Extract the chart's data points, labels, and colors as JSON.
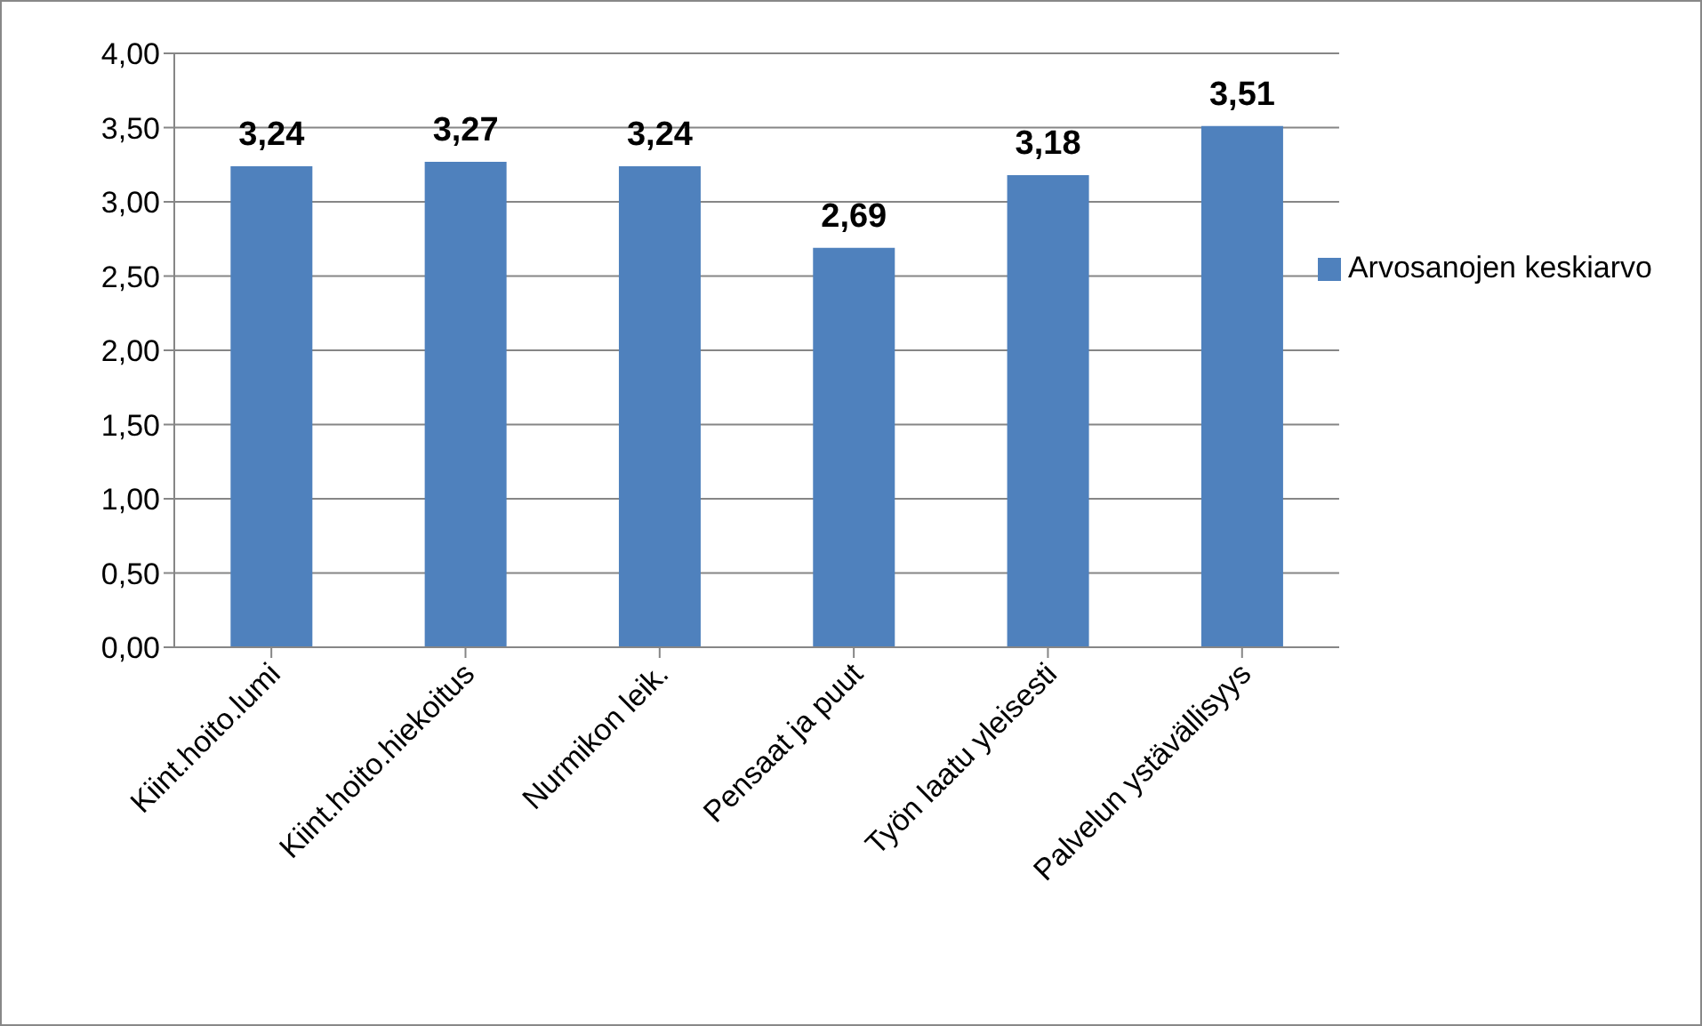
{
  "chart_data": {
    "type": "bar",
    "categories": [
      "Kiint.hoito.lumi",
      "Kiint.hoito.hiekoitus",
      "Nurmikon leik.",
      "Pensaat ja puut",
      "Työn laatu yleisesti",
      "Palvelun ystävällisyys"
    ],
    "series": [
      {
        "name": "Arvosanojen keskiarvo",
        "color": "#4f81bd",
        "values": [
          3.24,
          3.27,
          3.24,
          2.69,
          3.18,
          3.51
        ],
        "value_labels": [
          "3,24",
          "3,27",
          "3,24",
          "2,69",
          "3,18",
          "3,51"
        ]
      }
    ],
    "ylim": [
      0,
      4
    ],
    "yticks": [
      {
        "value": 0,
        "label": "0,00"
      },
      {
        "value": 0.5,
        "label": "0,50"
      },
      {
        "value": 1,
        "label": "1,00"
      },
      {
        "value": 1.5,
        "label": "1,50"
      },
      {
        "value": 2,
        "label": "2,00"
      },
      {
        "value": 2.5,
        "label": "2,50"
      },
      {
        "value": 3,
        "label": "3,00"
      },
      {
        "value": 3.5,
        "label": "3,50"
      },
      {
        "value": 4,
        "label": "4,00"
      }
    ],
    "grid": "y",
    "legend": "right"
  }
}
